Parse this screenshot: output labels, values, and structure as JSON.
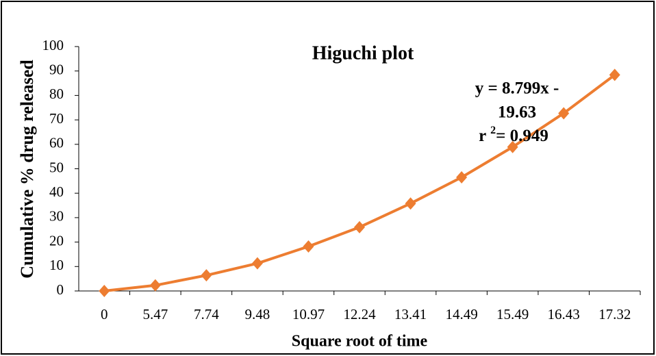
{
  "chart_data": {
    "type": "line",
    "title": "Higuchi plot",
    "x_label": "Square root of time",
    "y_label": "Cumulative % drug released",
    "categories": [
      "0",
      "5.47",
      "7.74",
      "9.48",
      "10.97",
      "12.24",
      "13.41",
      "14.49",
      "15.49",
      "16.43",
      "17.32"
    ],
    "values": [
      0,
      2.3,
      6.4,
      11.3,
      18.2,
      26.1,
      35.8,
      46.5,
      58.9,
      72.7,
      88.4
    ],
    "color": "#ed7d31",
    "ylim": [
      0,
      100
    ],
    "yticks": [
      0,
      10,
      20,
      30,
      40,
      50,
      60,
      70,
      80,
      90,
      100
    ],
    "annotation": [
      "y = 8.799x -",
      "19.63"
    ],
    "r_squared": {
      "prefix": "r ",
      "sup": "2",
      "text": "= 0.949"
    }
  }
}
